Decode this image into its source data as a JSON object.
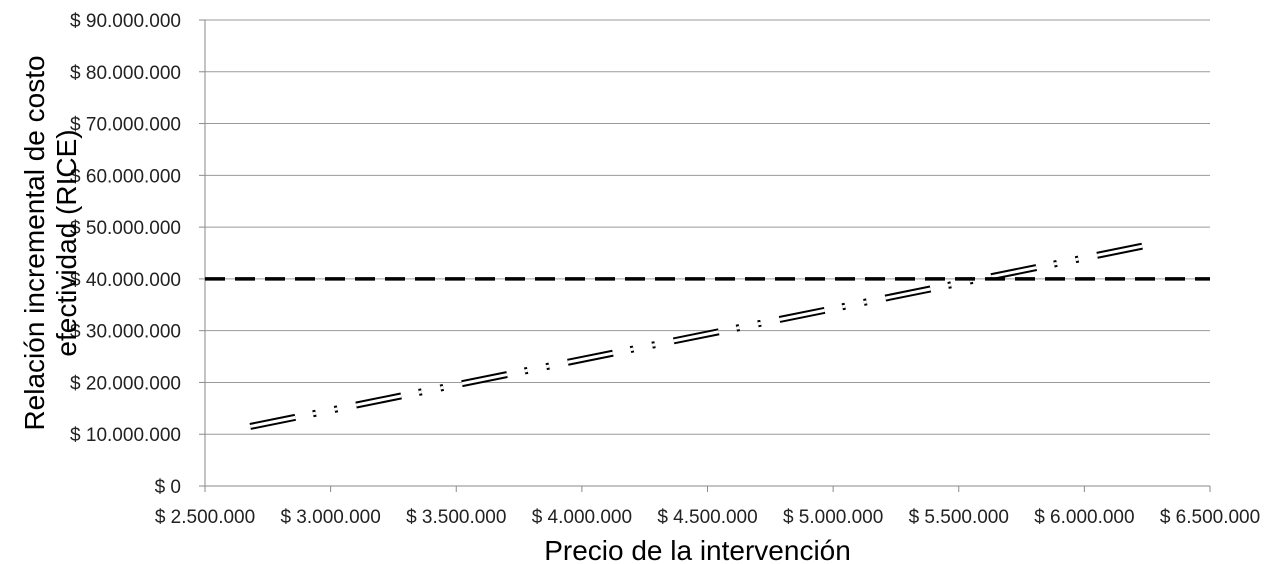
{
  "chart_data": {
    "type": "line",
    "title": "",
    "xlabel": "Precio de la intervención",
    "ylabel": "Relación incremental de costo efectividad (RICE)",
    "xlim": [
      2500000,
      6500000
    ],
    "ylim": [
      0,
      90000000
    ],
    "x_ticks": [
      2500000,
      3000000,
      3500000,
      4000000,
      4500000,
      5000000,
      5500000,
      6000000,
      6500000
    ],
    "y_ticks": [
      0,
      10000000,
      20000000,
      30000000,
      40000000,
      50000000,
      60000000,
      70000000,
      80000000,
      90000000
    ],
    "x_tick_labels": [
      "$ 2.500.000",
      "$ 3.000.000",
      "$ 3.500.000",
      "$ 4.000.000",
      "$ 4.500.000",
      "$ 5.000.000",
      "$ 5.500.000",
      "$ 6.000.000",
      "$ 6.500.000"
    ],
    "y_tick_labels": [
      "$ 0",
      "$ 10.000.000",
      "$ 20.000.000",
      "$ 30.000.000",
      "$ 40.000.000",
      "$ 50.000.000",
      "$ 60.000.000",
      "$ 70.000.000",
      "$ 80.000.000",
      "$ 90.000.000"
    ],
    "grid": true,
    "legend": "none",
    "series": [
      {
        "style": "double-line dash-dot-dot",
        "color": "#000000",
        "x": [
          2680000,
          6300000
        ],
        "values": [
          11500000,
          47000000
        ]
      },
      {
        "style": "thick dashed",
        "color": "#000000",
        "x": [
          2500000,
          6500000
        ],
        "values": [
          40000000,
          40000000
        ]
      }
    ]
  }
}
